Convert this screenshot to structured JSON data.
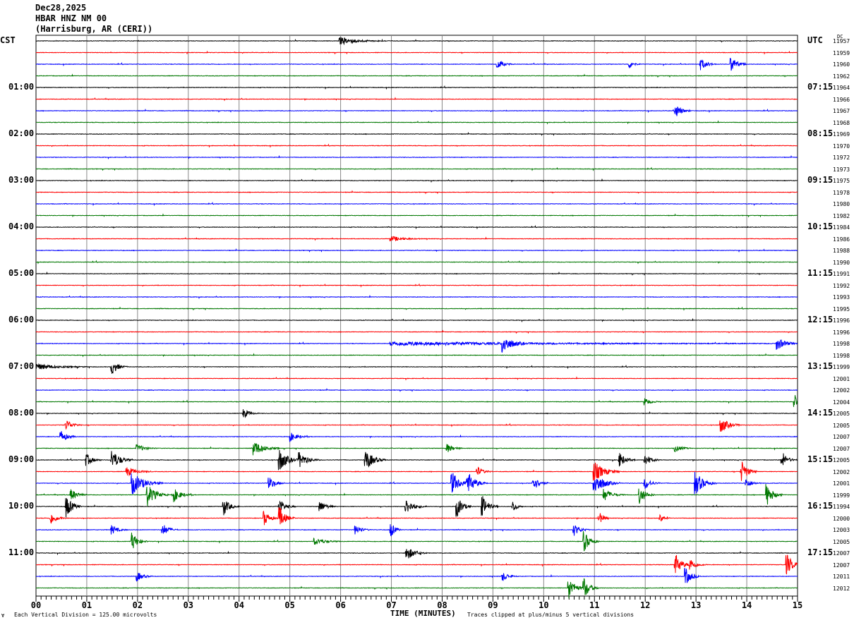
{
  "header": {
    "date": "Dec28,2025",
    "station": "HBAR HNZ NM 00",
    "location": "(Harrisburg, AR (CERI))"
  },
  "left_axis": {
    "title": "CST",
    "labels": [
      "01:00",
      "02:00",
      "03:00",
      "04:00",
      "05:00",
      "06:00",
      "07:00",
      "08:00",
      "09:00",
      "10:00",
      "11:00"
    ]
  },
  "right_axis": {
    "title": "UTC",
    "labels": [
      "07:15",
      "08:15",
      "09:15",
      "10:15",
      "11:15",
      "12:15",
      "13:15",
      "14:15",
      "15:15",
      "16:15",
      "17:15"
    ],
    "dc_title": "DC"
  },
  "footer": {
    "xlabel": "TIME (MINUTES)",
    "scale_note": "Each Vertical Division =  125.00 microvolts",
    "clip_note": "Traces clipped at plus/minus 5 vertical divisions",
    "corner_mark": "Ɐ"
  },
  "chart_data": {
    "type": "line",
    "title": "HBAR HNZ NM 00",
    "xlabel": "TIME (MINUTES)",
    "xlim": [
      0,
      15
    ],
    "x_ticks": [
      "00",
      "01",
      "02",
      "03",
      "04",
      "05",
      "06",
      "07",
      "08",
      "09",
      "10",
      "11",
      "12",
      "13",
      "14",
      "15"
    ],
    "grid": true,
    "trace_count": 48,
    "trace_colors": [
      "#000000",
      "#ff0000",
      "#0000ff",
      "#007700"
    ],
    "clip_divisions": 5,
    "dc_offsets": [
      11957,
      11959,
      11960,
      11962,
      11964,
      11966,
      11967,
      11968,
      11969,
      11970,
      11972,
      11973,
      11975,
      11978,
      11980,
      11982,
      11984,
      11986,
      11988,
      11990,
      11991,
      11992,
      11993,
      11995,
      11996,
      11996,
      11998,
      11998,
      11999,
      12001,
      12002,
      12004,
      12005,
      12005,
      12007,
      12007,
      12005,
      12002,
      12001,
      11999,
      11994,
      12000,
      12003,
      12005,
      12007,
      12007,
      12011,
      12012
    ],
    "events": [
      {
        "trace": 0,
        "minute": 6.0,
        "amp": 1.6,
        "dur": 0.9
      },
      {
        "trace": 2,
        "minute": 9.1,
        "amp": 2,
        "dur": 0.3
      },
      {
        "trace": 2,
        "minute": 11.7,
        "amp": 1.8,
        "dur": 0.2
      },
      {
        "trace": 2,
        "minute": 13.1,
        "amp": 2.6,
        "dur": 0.3
      },
      {
        "trace": 2,
        "minute": 13.7,
        "amp": 3.4,
        "dur": 0.3
      },
      {
        "trace": 6,
        "minute": 12.6,
        "amp": 3.2,
        "dur": 0.3
      },
      {
        "trace": 17,
        "minute": 7.0,
        "amp": 1.2,
        "dur": 0.6
      },
      {
        "trace": 26,
        "minute": 7.0,
        "amp": 2.5,
        "dur": 8.0
      },
      {
        "trace": 26,
        "minute": 9.2,
        "amp": 4,
        "dur": 0.4
      },
      {
        "trace": 26,
        "minute": 14.6,
        "amp": 2.8,
        "dur": 0.4
      },
      {
        "trace": 28,
        "minute": 1.5,
        "amp": 3.2,
        "dur": 0.3
      },
      {
        "trace": 28,
        "minute": 0.0,
        "amp": 1.5,
        "dur": 1.0
      },
      {
        "trace": 31,
        "minute": 14.95,
        "amp": 3.3,
        "dur": 0.1
      },
      {
        "trace": 31,
        "minute": 12.0,
        "amp": 1.6,
        "dur": 0.3
      },
      {
        "trace": 32,
        "minute": 4.1,
        "amp": 2,
        "dur": 0.3
      },
      {
        "trace": 33,
        "minute": 0.6,
        "amp": 2.4,
        "dur": 0.3
      },
      {
        "trace": 33,
        "minute": 13.5,
        "amp": 3.2,
        "dur": 0.4
      },
      {
        "trace": 34,
        "minute": 0.5,
        "amp": 2.6,
        "dur": 0.3
      },
      {
        "trace": 34,
        "minute": 5.0,
        "amp": 2,
        "dur": 0.4
      },
      {
        "trace": 35,
        "minute": 4.3,
        "amp": 3.2,
        "dur": 0.5
      },
      {
        "trace": 35,
        "minute": 2.0,
        "amp": 1.6,
        "dur": 0.4
      },
      {
        "trace": 35,
        "minute": 8.1,
        "amp": 2,
        "dur": 0.3
      },
      {
        "trace": 35,
        "minute": 12.6,
        "amp": 1.6,
        "dur": 0.3
      },
      {
        "trace": 36,
        "minute": 1.0,
        "amp": 2.6,
        "dur": 0.3
      },
      {
        "trace": 36,
        "minute": 1.5,
        "amp": 4.5,
        "dur": 0.4
      },
      {
        "trace": 36,
        "minute": 4.8,
        "amp": 5,
        "dur": 0.4
      },
      {
        "trace": 36,
        "minute": 5.2,
        "amp": 3.2,
        "dur": 0.4
      },
      {
        "trace": 36,
        "minute": 6.5,
        "amp": 4.5,
        "dur": 0.4
      },
      {
        "trace": 36,
        "minute": 11.5,
        "amp": 3.2,
        "dur": 0.3
      },
      {
        "trace": 36,
        "minute": 12.0,
        "amp": 2.6,
        "dur": 0.3
      },
      {
        "trace": 36,
        "minute": 14.7,
        "amp": 3.2,
        "dur": 0.3
      },
      {
        "trace": 37,
        "minute": 1.8,
        "amp": 2,
        "dur": 0.5
      },
      {
        "trace": 37,
        "minute": 8.7,
        "amp": 2,
        "dur": 0.3
      },
      {
        "trace": 37,
        "minute": 11.0,
        "amp": 4.5,
        "dur": 0.5
      },
      {
        "trace": 37,
        "minute": 13.9,
        "amp": 5,
        "dur": 0.3
      },
      {
        "trace": 38,
        "minute": 1.9,
        "amp": 5,
        "dur": 0.6
      },
      {
        "trace": 38,
        "minute": 4.6,
        "amp": 2.6,
        "dur": 0.3
      },
      {
        "trace": 38,
        "minute": 8.2,
        "amp": 5,
        "dur": 0.4
      },
      {
        "trace": 38,
        "minute": 8.5,
        "amp": 5,
        "dur": 0.4
      },
      {
        "trace": 38,
        "minute": 9.8,
        "amp": 3.2,
        "dur": 0.3
      },
      {
        "trace": 38,
        "minute": 11.0,
        "amp": 5,
        "dur": 0.5
      },
      {
        "trace": 38,
        "minute": 12.0,
        "amp": 2.6,
        "dur": 0.3
      },
      {
        "trace": 38,
        "minute": 13.0,
        "amp": 5,
        "dur": 0.4
      },
      {
        "trace": 38,
        "minute": 14.0,
        "amp": 2,
        "dur": 0.3
      },
      {
        "trace": 39,
        "minute": 0.7,
        "amp": 2.6,
        "dur": 0.3
      },
      {
        "trace": 39,
        "minute": 2.2,
        "amp": 5,
        "dur": 0.4
      },
      {
        "trace": 39,
        "minute": 2.7,
        "amp": 3.2,
        "dur": 0.4
      },
      {
        "trace": 39,
        "minute": 11.2,
        "amp": 2.6,
        "dur": 0.4
      },
      {
        "trace": 39,
        "minute": 11.9,
        "amp": 3.8,
        "dur": 0.3
      },
      {
        "trace": 39,
        "minute": 14.4,
        "amp": 5,
        "dur": 0.3
      },
      {
        "trace": 40,
        "minute": 0.6,
        "amp": 5,
        "dur": 0.3
      },
      {
        "trace": 40,
        "minute": 3.7,
        "amp": 3.8,
        "dur": 0.3
      },
      {
        "trace": 40,
        "minute": 4.8,
        "amp": 3.2,
        "dur": 0.3
      },
      {
        "trace": 40,
        "minute": 5.6,
        "amp": 2.6,
        "dur": 0.3
      },
      {
        "trace": 40,
        "minute": 7.3,
        "amp": 3.2,
        "dur": 0.4
      },
      {
        "trace": 40,
        "minute": 8.3,
        "amp": 4.5,
        "dur": 0.3
      },
      {
        "trace": 40,
        "minute": 8.8,
        "amp": 4.5,
        "dur": 0.3
      },
      {
        "trace": 40,
        "minute": 9.4,
        "amp": 2.6,
        "dur": 0.2
      },
      {
        "trace": 41,
        "minute": 0.3,
        "amp": 2.6,
        "dur": 0.3
      },
      {
        "trace": 41,
        "minute": 4.5,
        "amp": 3.2,
        "dur": 0.3
      },
      {
        "trace": 41,
        "minute": 4.8,
        "amp": 5,
        "dur": 0.3
      },
      {
        "trace": 41,
        "minute": 11.1,
        "amp": 2.6,
        "dur": 0.2
      },
      {
        "trace": 41,
        "minute": 12.3,
        "amp": 1.6,
        "dur": 0.2
      },
      {
        "trace": 42,
        "minute": 1.5,
        "amp": 2,
        "dur": 0.3
      },
      {
        "trace": 42,
        "minute": 2.5,
        "amp": 2.6,
        "dur": 0.3
      },
      {
        "trace": 42,
        "minute": 6.3,
        "amp": 2,
        "dur": 0.3
      },
      {
        "trace": 42,
        "minute": 7.0,
        "amp": 3.2,
        "dur": 0.2
      },
      {
        "trace": 42,
        "minute": 10.6,
        "amp": 2.6,
        "dur": 0.3
      },
      {
        "trace": 43,
        "minute": 1.9,
        "amp": 3.8,
        "dur": 0.3
      },
      {
        "trace": 43,
        "minute": 5.5,
        "amp": 1.6,
        "dur": 0.5
      },
      {
        "trace": 43,
        "minute": 10.8,
        "amp": 4.5,
        "dur": 0.3
      },
      {
        "trace": 44,
        "minute": 7.3,
        "amp": 3.2,
        "dur": 0.4
      },
      {
        "trace": 45,
        "minute": 12.6,
        "amp": 5,
        "dur": 0.3
      },
      {
        "trace": 45,
        "minute": 12.9,
        "amp": 2.6,
        "dur": 0.3
      },
      {
        "trace": 45,
        "minute": 14.8,
        "amp": 4.5,
        "dur": 0.3
      },
      {
        "trace": 46,
        "minute": 2.0,
        "amp": 2,
        "dur": 0.3
      },
      {
        "trace": 46,
        "minute": 9.2,
        "amp": 2,
        "dur": 0.3
      },
      {
        "trace": 46,
        "minute": 12.8,
        "amp": 3.8,
        "dur": 0.3
      },
      {
        "trace": 47,
        "minute": 10.5,
        "amp": 5,
        "dur": 0.3
      },
      {
        "trace": 47,
        "minute": 10.8,
        "amp": 4.5,
        "dur": 0.3
      }
    ]
  }
}
